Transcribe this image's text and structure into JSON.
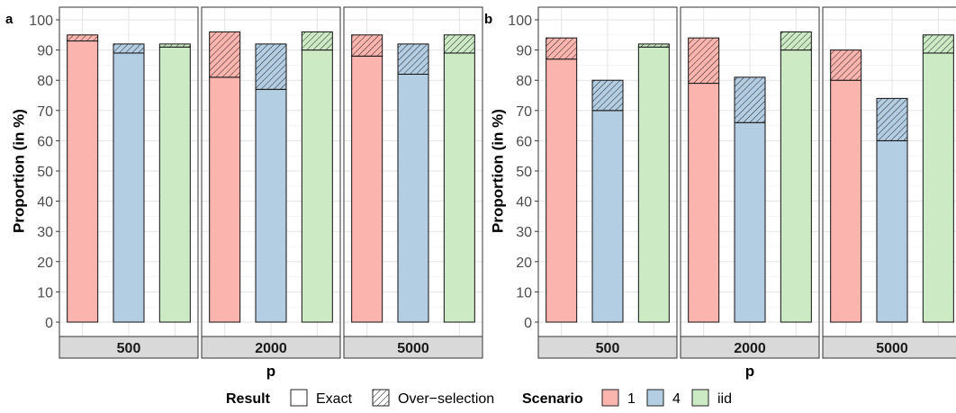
{
  "chart_data": [
    {
      "type": "bar",
      "panel_label": "a",
      "ylabel": "Proportion (in %)",
      "xlabel": "p",
      "ylim": [
        0,
        100
      ],
      "yticks": [
        0,
        10,
        20,
        30,
        40,
        50,
        60,
        70,
        80,
        90,
        100
      ],
      "grid": true,
      "facets": [
        {
          "label": "500",
          "bars": [
            {
              "scenario": "1",
              "exact": 93,
              "total": 95
            },
            {
              "scenario": "4",
              "exact": 89,
              "total": 92
            },
            {
              "scenario": "iid",
              "exact": 91,
              "total": 92
            }
          ]
        },
        {
          "label": "2000",
          "bars": [
            {
              "scenario": "1",
              "exact": 81,
              "total": 96
            },
            {
              "scenario": "4",
              "exact": 77,
              "total": 92
            },
            {
              "scenario": "iid",
              "exact": 90,
              "total": 96
            }
          ]
        },
        {
          "label": "5000",
          "bars": [
            {
              "scenario": "1",
              "exact": 88,
              "total": 95
            },
            {
              "scenario": "4",
              "exact": 82,
              "total": 92
            },
            {
              "scenario": "iid",
              "exact": 89,
              "total": 95
            }
          ]
        }
      ]
    },
    {
      "type": "bar",
      "panel_label": "b",
      "ylabel": "Proportion (in %)",
      "xlabel": "p",
      "ylim": [
        0,
        100
      ],
      "yticks": [
        0,
        10,
        20,
        30,
        40,
        50,
        60,
        70,
        80,
        90,
        100
      ],
      "grid": true,
      "facets": [
        {
          "label": "500",
          "bars": [
            {
              "scenario": "1",
              "exact": 87,
              "total": 94
            },
            {
              "scenario": "4",
              "exact": 70,
              "total": 80
            },
            {
              "scenario": "iid",
              "exact": 91,
              "total": 92
            }
          ]
        },
        {
          "label": "2000",
          "bars": [
            {
              "scenario": "1",
              "exact": 79,
              "total": 94
            },
            {
              "scenario": "4",
              "exact": 66,
              "total": 81
            },
            {
              "scenario": "iid",
              "exact": 90,
              "total": 96
            }
          ]
        },
        {
          "label": "5000",
          "bars": [
            {
              "scenario": "1",
              "exact": 80,
              "total": 90
            },
            {
              "scenario": "4",
              "exact": 60,
              "total": 74
            },
            {
              "scenario": "iid",
              "exact": 89,
              "total": 95
            }
          ]
        }
      ]
    }
  ],
  "legend": {
    "placement": "bottom",
    "result_title": "Result",
    "result_items": [
      "Exact",
      "Over−selection"
    ],
    "scenario_title": "Scenario",
    "scenario_items": [
      {
        "label": "1",
        "color": "#fbb4ae"
      },
      {
        "label": "4",
        "color": "#b3cde3"
      },
      {
        "label": "iid",
        "color": "#ccebc5"
      }
    ]
  }
}
